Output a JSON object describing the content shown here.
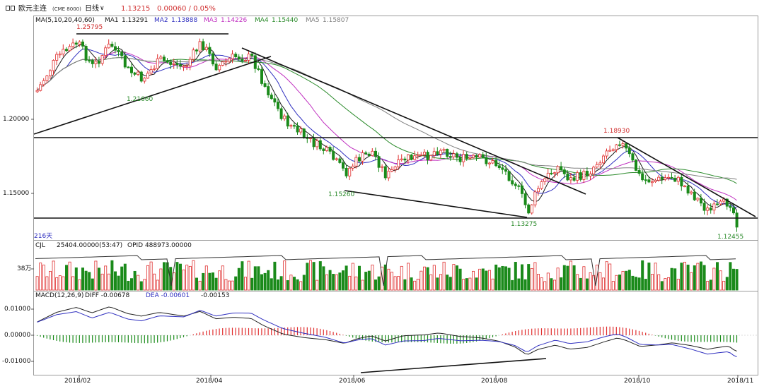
{
  "header": {
    "icon": "window-icon",
    "symbol": "欧元主连",
    "exchange_code": "(CME 8000)",
    "period": "日线",
    "period_caret": "∨",
    "last_price": "1.13215",
    "change": "0.00060 / 0.05%"
  },
  "price_panel": {
    "ma_title": "MA(5,10,20,40,60)",
    "ma_values": [
      {
        "name": "MA1",
        "value": "1.13291",
        "color": "#1a1a1a"
      },
      {
        "name": "MA2",
        "value": "1.13888",
        "color": "#3030c0"
      },
      {
        "name": "MA3",
        "value": "1.14226",
        "color": "#c030c0"
      },
      {
        "name": "MA4",
        "value": "1.15440",
        "color": "#2a8a2a"
      },
      {
        "name": "MA5",
        "value": "1.15807",
        "color": "#808080"
      }
    ],
    "y_ticks": [
      "1.20000",
      "1.15000"
    ],
    "bars_count_label": "216天",
    "annotations": [
      "1.25795",
      "1.21660",
      "1.15260",
      "1.13275",
      "1.18930",
      "1.12455"
    ]
  },
  "volume_panel": {
    "title": "CJL",
    "volume": "25404.00000(53:47)",
    "opid": "OPID 488973.00000",
    "y_tick": "38万"
  },
  "macd_panel": {
    "title": "MACD(12,26,9)",
    "diff": "DIFF -0.00678",
    "dea": "DEA -0.00601",
    "macd": "-0.00153",
    "y_ticks": [
      "0.01000",
      "0.00000",
      "-0.01000"
    ]
  },
  "x_axis": {
    "labels": [
      "2018/02",
      "2018/04",
      "2018/06",
      "2018/08",
      "2018/10",
      "2018/11"
    ]
  },
  "colors": {
    "up": "#e03030",
    "down": "#1a8a1a",
    "text_red": "#d03030",
    "text_green": "#2a8a2a",
    "text_blue": "#3030c0"
  }
}
